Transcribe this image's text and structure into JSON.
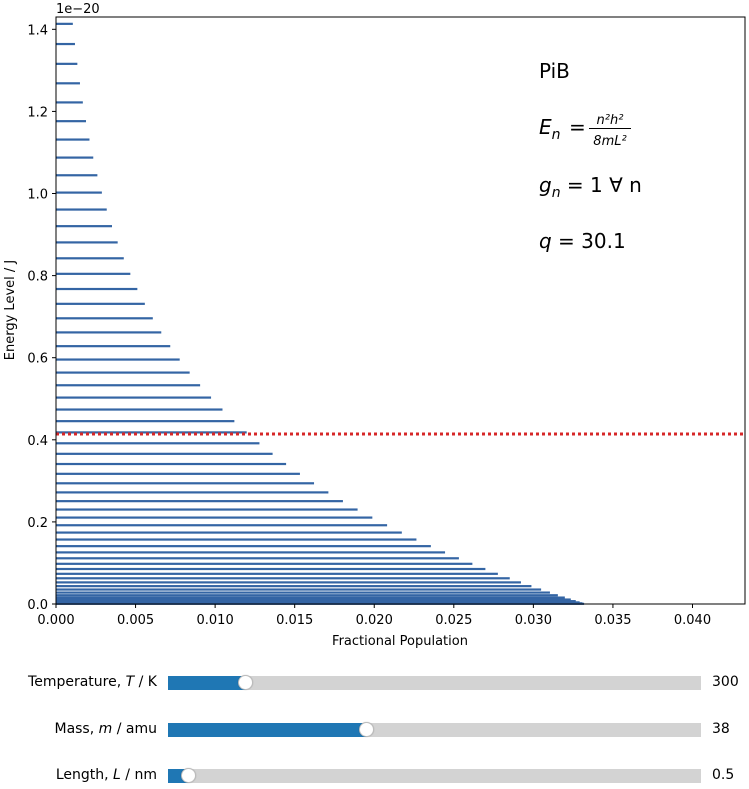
{
  "chart_data": {
    "type": "bar",
    "orientation": "horizontal",
    "title": "",
    "xlabel": "Fractional Population",
    "ylabel": "Energy Level / J",
    "y_offset_text": "1e−20",
    "xlim": [
      0,
      0.0433
    ],
    "ylim": [
      0,
      1.43
    ],
    "x_ticks": [
      "0.000",
      "0.005",
      "0.010",
      "0.015",
      "0.020",
      "0.025",
      "0.030",
      "0.035",
      "0.040"
    ],
    "y_ticks": [
      "0.0",
      "0.2",
      "0.4",
      "0.6",
      "0.8",
      "1.0",
      "1.2",
      "1.4"
    ],
    "bar_color": "#3465a4",
    "reference_line": {
      "y": 0.414,
      "color": "#d62728",
      "style": "dotted"
    },
    "annotations": {
      "model": "PiB",
      "energy_lhs": "E",
      "energy_sub": "n",
      "energy_num": "n²h²",
      "energy_den": "8mL²",
      "degeneracy_lhs": "g",
      "degeneracy_sub": "n",
      "degeneracy_rhs": " = 1 ∀ n",
      "partition_lhs": "q",
      "partition_rhs": " = 30.1"
    },
    "q": 30.1,
    "levels_note_unit_y": 1e-20
  },
  "controls": [
    {
      "label_pre": "Temperature, ",
      "symbol": "T",
      "label_post": " / K",
      "value": "300",
      "fraction": 0.146
    },
    {
      "label_pre": "Mass, ",
      "symbol": "m",
      "label_post": " / amu",
      "value": "38",
      "fraction": 0.373
    },
    {
      "label_pre": "Length, ",
      "symbol": "L",
      "label_post": " / nm",
      "value": "0.5",
      "fraction": 0.04
    }
  ]
}
